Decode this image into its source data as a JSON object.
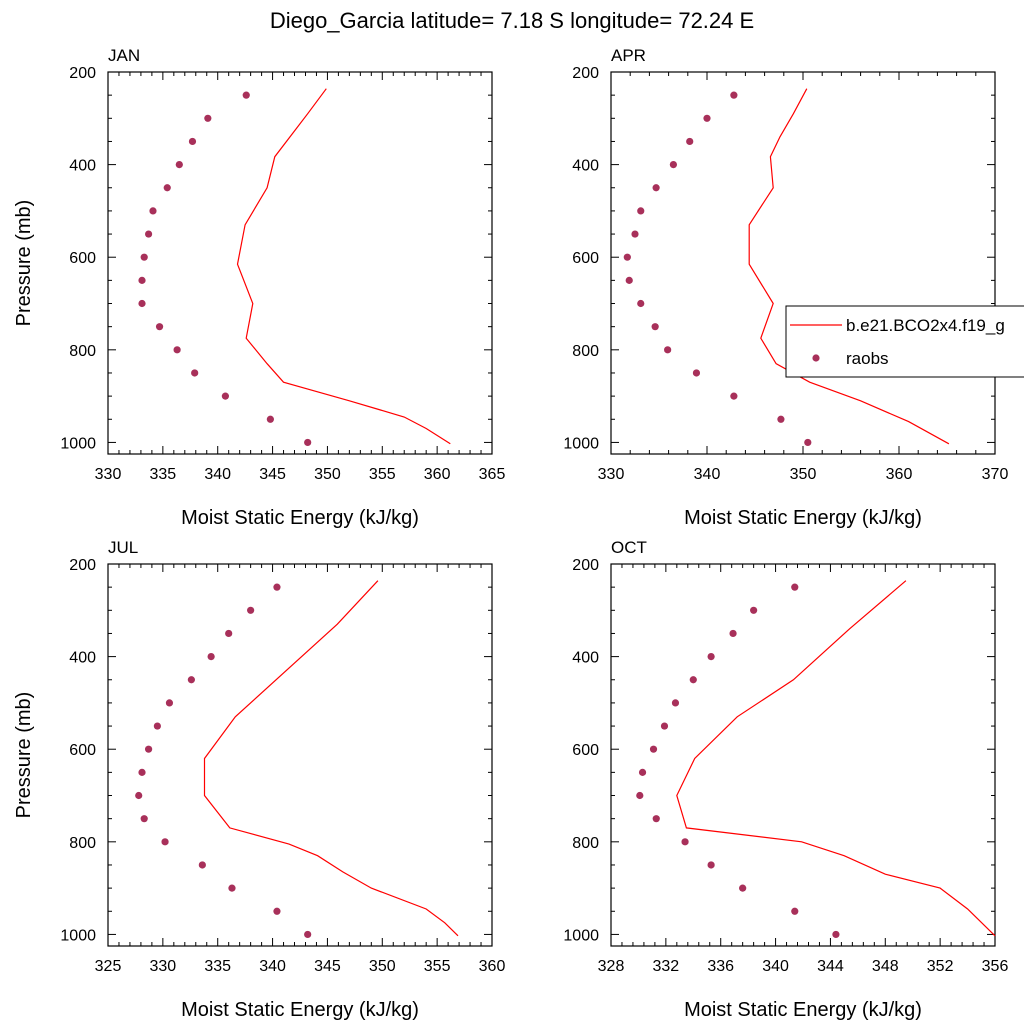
{
  "title": "Diego_Garcia  latitude= 7.18 S longitude= 72.24 E",
  "colors": {
    "model": "#ff0000",
    "obs": "#a8305a",
    "axis": "#000000"
  },
  "legend": {
    "model_label": "b.e21.BCO2x4.f19_g",
    "obs_label": "raobs"
  },
  "chart_data": [
    {
      "type": "line",
      "panel": "JAN",
      "xlabel": "Moist Static Energy (kJ/kg)",
      "ylabel": "Pressure (mb)",
      "xlim": [
        330,
        365
      ],
      "xticks": [
        330,
        335,
        340,
        345,
        350,
        355,
        360,
        365
      ],
      "ylim": [
        200,
        1025
      ],
      "yticks": [
        200,
        400,
        600,
        800,
        1000
      ],
      "model": {
        "name": "b.e21.BCO2x4.f19_g",
        "x": [
          349.9,
          348.2,
          345.2,
          344.5,
          342.5,
          341.8,
          343.2,
          342.6,
          344.5,
          346.0,
          352.0,
          357.0,
          359.0,
          361.2
        ],
        "p": [
          236,
          290,
          383,
          450,
          530,
          615,
          700,
          775,
          830,
          870,
          910,
          945,
          970,
          1003
        ]
      },
      "obs": {
        "name": "raobs",
        "x": [
          342.6,
          339.1,
          337.7,
          336.5,
          335.4,
          334.1,
          333.7,
          333.3,
          333.1,
          333.1,
          334.7,
          336.3,
          337.9,
          340.7,
          344.8,
          348.2
        ],
        "p": [
          250,
          300,
          350,
          400,
          450,
          500,
          550,
          600,
          650,
          700,
          750,
          800,
          850,
          900,
          950,
          1000
        ]
      }
    },
    {
      "type": "line",
      "panel": "APR",
      "xlabel": "Moist Static Energy (kJ/kg)",
      "ylabel": "",
      "xlim": [
        330,
        370
      ],
      "xticks": [
        330,
        340,
        350,
        360,
        370
      ],
      "ylim": [
        200,
        1025
      ],
      "yticks": [
        200,
        400,
        600,
        800,
        1000
      ],
      "model": {
        "name": "b.e21.BCO2x4.f19_g",
        "x": [
          350.4,
          349.0,
          347.6,
          346.6,
          346.9,
          344.4,
          344.4,
          346.9,
          345.6,
          347.2,
          350.7,
          356.0,
          361.0,
          365.2
        ],
        "p": [
          236,
          290,
          340,
          383,
          450,
          530,
          615,
          700,
          775,
          830,
          870,
          910,
          955,
          1003
        ]
      },
      "obs": {
        "name": "raobs",
        "x": [
          342.8,
          340.0,
          338.2,
          336.5,
          334.7,
          333.1,
          332.5,
          331.7,
          331.9,
          333.1,
          334.6,
          335.9,
          338.9,
          342.8,
          347.7,
          350.5
        ],
        "p": [
          250,
          300,
          350,
          400,
          450,
          500,
          550,
          600,
          650,
          700,
          750,
          800,
          850,
          900,
          950,
          1000
        ]
      }
    },
    {
      "type": "line",
      "panel": "JUL",
      "xlabel": "Moist Static Energy (kJ/kg)",
      "ylabel": "Pressure (mb)",
      "xlim": [
        325,
        360
      ],
      "xticks": [
        325,
        330,
        335,
        340,
        345,
        350,
        355,
        360
      ],
      "ylim": [
        200,
        1025
      ],
      "yticks": [
        200,
        400,
        600,
        800,
        1000
      ],
      "model": {
        "name": "b.e21.BCO2x4.f19_g",
        "x": [
          349.6,
          345.9,
          336.6,
          333.8,
          333.8,
          336.1,
          341.5,
          344.1,
          346.4,
          349.0,
          354.0,
          355.7,
          356.9
        ],
        "p": [
          236,
          330,
          530,
          620,
          700,
          770,
          805,
          830,
          865,
          900,
          945,
          975,
          1003
        ]
      },
      "obs": {
        "name": "raobs",
        "x": [
          340.4,
          338.0,
          336.0,
          334.4,
          332.6,
          330.6,
          329.5,
          328.7,
          328.1,
          327.8,
          328.3,
          330.2,
          333.6,
          336.3,
          340.4,
          343.2
        ],
        "p": [
          250,
          300,
          350,
          400,
          450,
          500,
          550,
          600,
          650,
          700,
          750,
          800,
          850,
          900,
          950,
          1000
        ]
      }
    },
    {
      "type": "line",
      "panel": "OCT",
      "xlabel": "Moist Static Energy (kJ/kg)",
      "ylabel": "",
      "xlim": [
        328,
        356
      ],
      "xticks": [
        328,
        332,
        336,
        340,
        344,
        348,
        352,
        356
      ],
      "ylim": [
        200,
        1025
      ],
      "yticks": [
        200,
        400,
        600,
        800,
        1000
      ],
      "model": {
        "name": "b.e21.BCO2x4.f19_g",
        "x": [
          349.5,
          345.4,
          341.3,
          337.2,
          334.1,
          332.8,
          333.5,
          341.9,
          345.0,
          348.0,
          352.0,
          354.0,
          356.0
        ],
        "p": [
          236,
          340,
          450,
          530,
          620,
          700,
          770,
          800,
          830,
          870,
          900,
          945,
          1003
        ]
      },
      "obs": {
        "name": "raobs",
        "x": [
          341.4,
          338.4,
          336.9,
          335.3,
          334.0,
          332.7,
          331.9,
          331.1,
          330.3,
          330.1,
          331.3,
          333.4,
          335.3,
          337.6,
          341.4,
          344.4
        ],
        "p": [
          250,
          300,
          350,
          400,
          450,
          500,
          550,
          600,
          650,
          700,
          750,
          800,
          850,
          900,
          950,
          1000
        ]
      }
    }
  ]
}
